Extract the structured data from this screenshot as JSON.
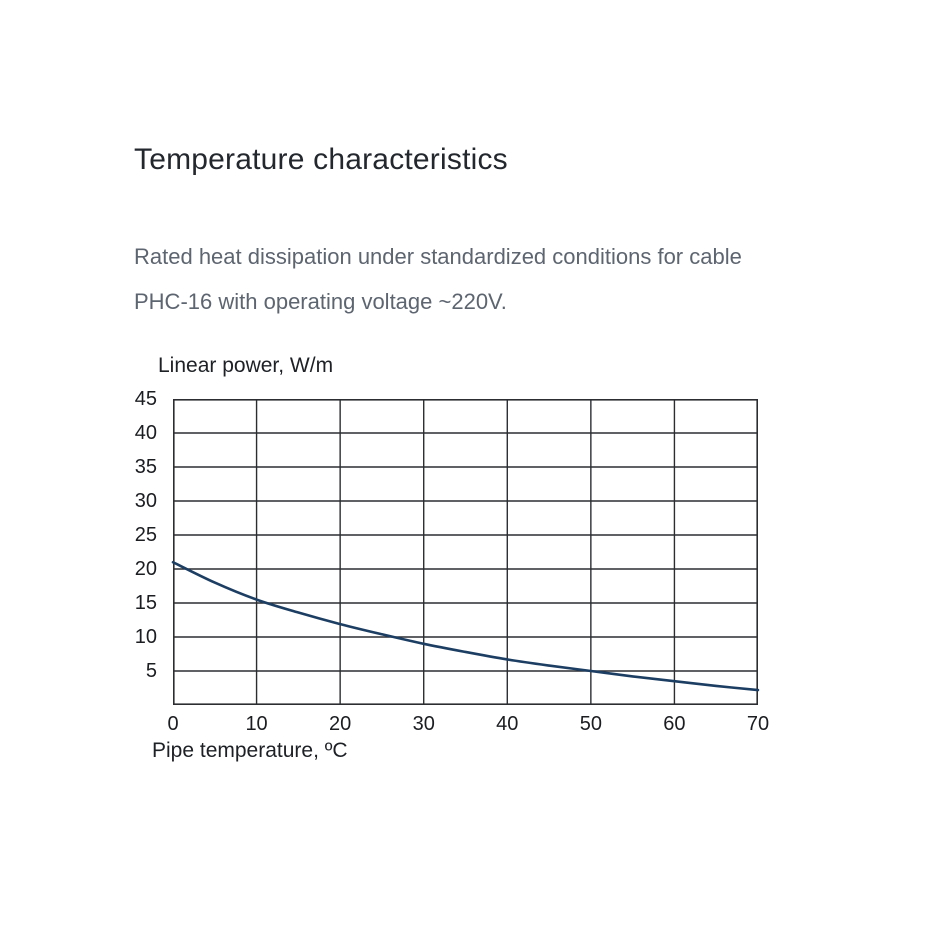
{
  "page": {
    "title": "Temperature characteristics",
    "description_line1": "Rated heat dissipation under standardized conditions for cable",
    "description_line2": "PHC-16 with operating voltage ~220V."
  },
  "chart_data": {
    "type": "line",
    "title": "Temperature characteristics",
    "subtitle": "Rated heat dissipation under standardized conditions for cable PHC-16 with operating voltage ~220V.",
    "ylabel": "Linear power, W/m",
    "xlabel": "Pipe temperature, ºC",
    "xlim": [
      0,
      70
    ],
    "ylim": [
      0,
      45
    ],
    "x_ticks": [
      0,
      10,
      20,
      30,
      40,
      50,
      60,
      70
    ],
    "y_ticks": [
      45,
      40,
      35,
      30,
      25,
      20,
      15,
      10,
      5
    ],
    "grid": true,
    "legend_position": "none",
    "colors": {
      "curve": "#1d3e63",
      "grid": "#2b2d31",
      "axis_text": "#1b1d21"
    },
    "series": [
      {
        "name": "PHC-16",
        "x": [
          0,
          5,
          10,
          15,
          20,
          25,
          30,
          35,
          40,
          45,
          50,
          55,
          60,
          65,
          70
        ],
        "y": [
          21,
          18,
          15.5,
          13.6,
          11.9,
          10.4,
          9.0,
          7.8,
          6.7,
          5.8,
          5.0,
          4.2,
          3.5,
          2.8,
          2.2
        ]
      }
    ]
  }
}
